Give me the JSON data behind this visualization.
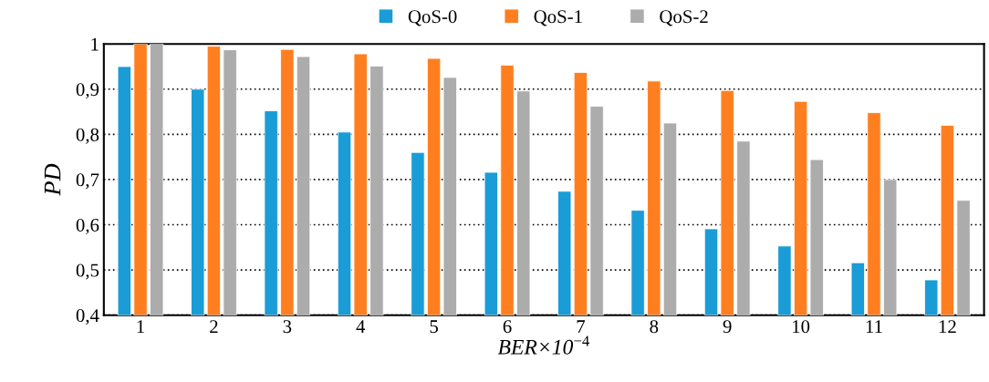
{
  "chart_data": {
    "type": "bar",
    "xlabel": "BER×10$^{−4}$",
    "ylabel": "PD",
    "categories": [
      "1",
      "2",
      "3",
      "4",
      "5",
      "6",
      "7",
      "8",
      "9",
      "10",
      "11",
      "12"
    ],
    "series": [
      {
        "name": "QoS-0",
        "color": "#1a9cd6",
        "values": [
          0.95,
          0.9,
          0.852,
          0.805,
          0.76,
          0.716,
          0.674,
          0.632,
          0.591,
          0.553,
          0.516,
          0.478
        ]
      },
      {
        "name": "QoS-1",
        "color": "#ff7f20",
        "values": [
          1.0,
          0.995,
          0.988,
          0.978,
          0.968,
          0.953,
          0.937,
          0.918,
          0.897,
          0.873,
          0.848,
          0.82
        ]
      },
      {
        "name": "QoS-2",
        "color": "#acacac",
        "values": [
          1.0,
          0.987,
          0.972,
          0.951,
          0.926,
          0.896,
          0.862,
          0.825,
          0.785,
          0.744,
          0.7,
          0.654
        ]
      }
    ],
    "ylim": [
      0.4,
      1.0
    ],
    "yticks": [
      {
        "value": 0.4,
        "label": "0,4"
      },
      {
        "value": 0.5,
        "label": "0,5"
      },
      {
        "value": 0.6,
        "label": "0,6"
      },
      {
        "value": 0.7,
        "label": "0,7"
      },
      {
        "value": 0.8,
        "label": "0,8"
      },
      {
        "value": 0.9,
        "label": "0,9"
      },
      {
        "value": 1.0,
        "label": "1"
      }
    ],
    "grid": "y",
    "legend": "top"
  }
}
